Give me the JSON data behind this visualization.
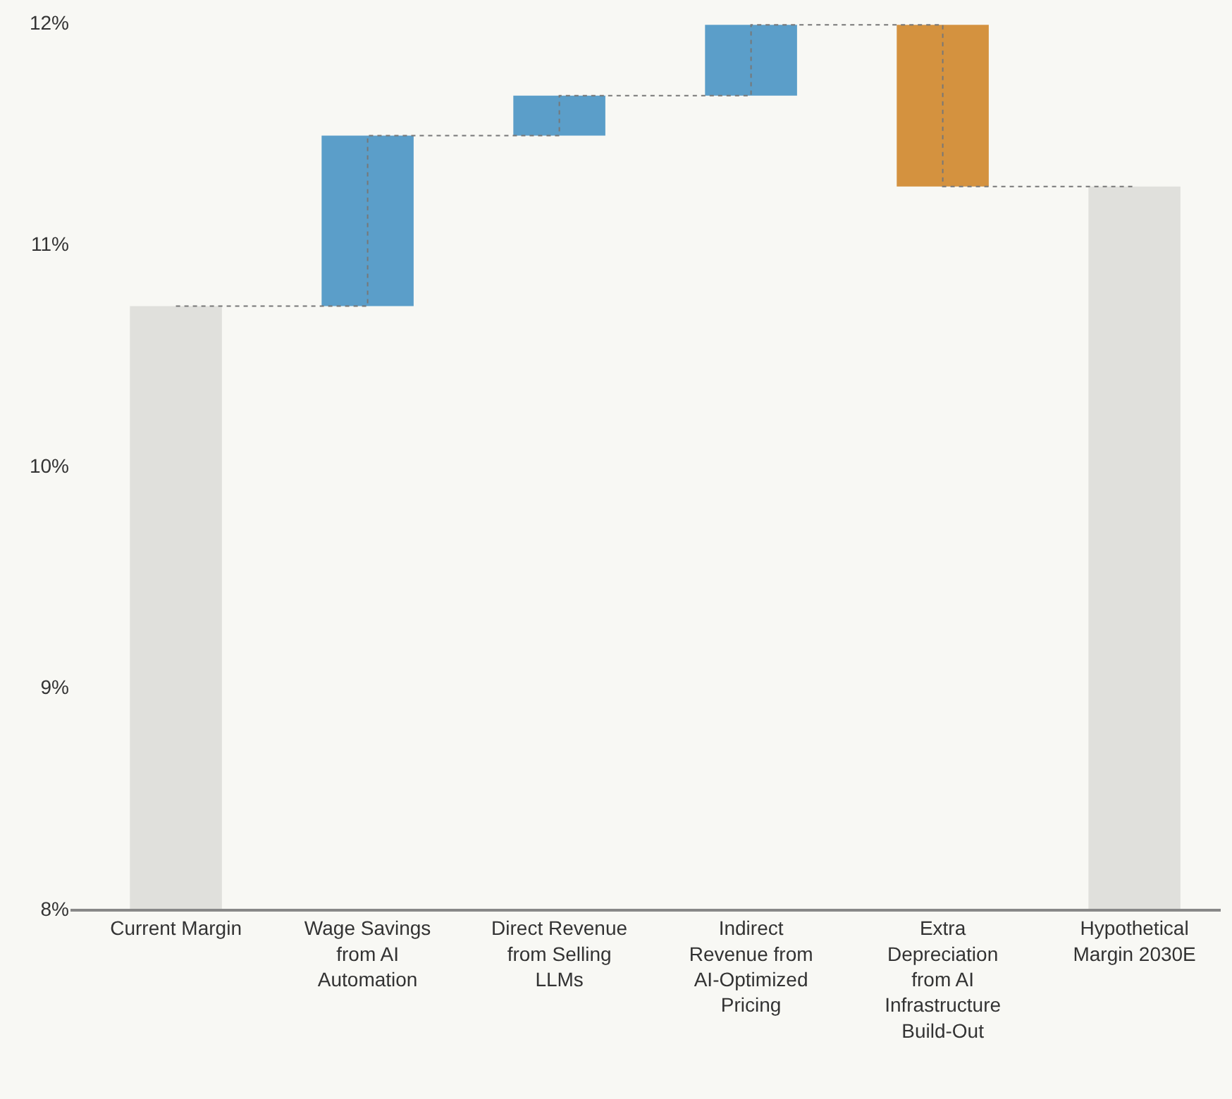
{
  "chart_data": {
    "type": "bar",
    "categories": [
      "Current Margin",
      "Wage Savings\nfrom AI\nAutomation",
      "Direct Revenue\nfrom Selling\nLLMs",
      "Indirect\nRevenue from\nAI-Optimized\nPricing",
      "Extra\nDepreciation\nfrom AI\nInfrastructure\nBuild-Out",
      "Hypothetical\nMargin 2030E"
    ],
    "values": [
      2.72,
      0.77,
      0.18,
      0.32,
      -0.73,
      3.26
    ],
    "base": [
      8,
      10.72,
      11.49,
      11.67,
      11.99,
      8
    ],
    "colors": [
      "#e0e0dc",
      "#5b9ec9",
      "#5b9ec9",
      "#5b9ec9",
      "#d4923f",
      "#e0e0dc"
    ],
    "ylim": [
      8,
      12
    ],
    "yticks": [
      {
        "value": 8,
        "label": "8%"
      },
      {
        "value": 9,
        "label": "9%"
      },
      {
        "value": 10,
        "label": "10%"
      },
      {
        "value": 11,
        "label": "11%"
      },
      {
        "value": 12,
        "label": "12%"
      }
    ],
    "series": [
      {
        "type": "step",
        "line_style": "dotted",
        "color": "#777777",
        "values": [
          10.72,
          11.49,
          11.67,
          11.99,
          11.26,
          11.26
        ]
      }
    ],
    "grid": false
  }
}
